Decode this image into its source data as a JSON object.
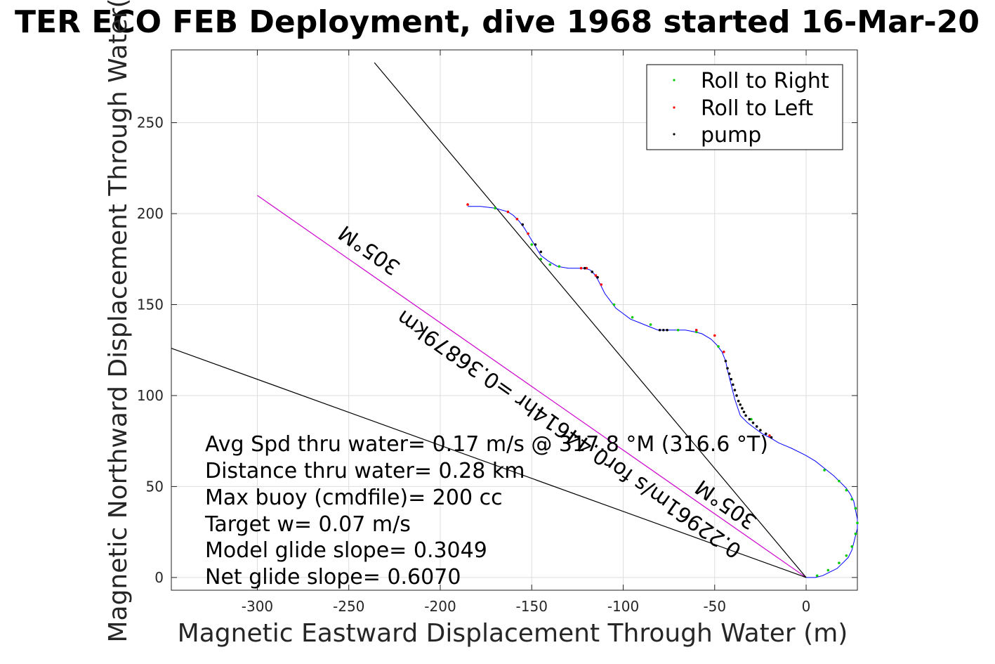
{
  "figure": {
    "title": "TER ECO FEB Deployment, dive 1968 started 16-Mar-20",
    "xlabel": "Magnetic Eastward Displacement Through Water (m)",
    "ylabel": "Magnetic Northward Displacement Through Water("
  },
  "legend": {
    "placement": "top-right",
    "items": [
      {
        "label": "Roll to Right",
        "color": "#00cc00"
      },
      {
        "label": "Roll to Left",
        "color": "#ff0000"
      },
      {
        "label": "pump",
        "color": "#000000"
      }
    ]
  },
  "stats": [
    "Avg Spd thru water=  0.17 m/s @ 317.8 °M (316.6 °T)",
    "Distance thru water=  0.28 km",
    "Max buoy (cmdfile)= 200 cc",
    "Target w= 0.07 m/s",
    "Model glide slope= 0.3049",
    "Net glide slope= 0.6070"
  ],
  "annotations": {
    "heading_far": "305°M",
    "heading_near": "305°M",
    "vector_label": "0.22961m/s for0.44614hr =0.36879km"
  },
  "colors": {
    "track": "#0000ff",
    "heading_line": "#cc00cc",
    "guide_lines": "#000000",
    "grid": "#dddddd"
  },
  "chart_data": {
    "type": "scatter",
    "title": "TER ECO FEB Deployment, dive 1968 started 16-Mar-20",
    "xlabel": "Magnetic Eastward Displacement Through Water (m)",
    "ylabel": "Magnetic Northward Displacement Through Water(",
    "xlim": [
      -347,
      28
    ],
    "ylim": [
      -7,
      290
    ],
    "xticks": [
      -300,
      -250,
      -200,
      -150,
      -100,
      -50,
      0
    ],
    "yticks": [
      0,
      50,
      100,
      150,
      200,
      250
    ],
    "grid": true,
    "track": {
      "x": [
        -185,
        -178,
        -170,
        -163,
        -160,
        -157,
        -154,
        -151,
        -148,
        -145,
        -141,
        -136,
        -130,
        -125,
        -121,
        -118,
        -116,
        -114,
        -112,
        -110,
        -107,
        -104,
        -100,
        -96,
        -91,
        -86,
        -81,
        -76,
        -71,
        -66,
        -61,
        -57,
        -52,
        -49,
        -46,
        -44,
        -43,
        -42,
        -41,
        -40,
        -39,
        -38,
        -37,
        -36,
        -34,
        -32,
        -28,
        -24,
        -20,
        -15,
        -8,
        0,
        5,
        10,
        15,
        19,
        22,
        24,
        26,
        27,
        28,
        28,
        27,
        26,
        25,
        23,
        20,
        17,
        13,
        9,
        5,
        2,
        0,
        2,
        0
      ],
      "y": [
        204,
        204,
        203,
        201,
        199,
        196,
        192,
        187,
        182,
        177,
        174,
        171,
        170,
        170,
        170,
        169,
        167,
        164,
        160,
        156,
        152,
        148,
        145,
        142,
        140,
        138,
        136,
        136,
        136,
        136,
        135,
        134,
        131,
        128,
        124,
        119,
        114,
        110,
        106,
        102,
        98,
        95,
        92,
        89,
        87,
        85,
        82,
        79,
        77,
        74,
        71,
        67,
        64,
        60,
        56,
        52,
        49,
        46,
        42,
        37,
        32,
        27,
        23,
        19,
        15,
        11,
        8,
        5,
        3,
        1,
        0,
        0,
        0,
        0,
        0
      ]
    },
    "series": [
      {
        "name": "Roll to Right",
        "x": [
          -170,
          -150,
          -145,
          -140,
          -135,
          -105,
          -95,
          -85,
          -70,
          -60,
          -48,
          -30,
          10,
          18,
          22,
          25,
          27,
          28,
          27,
          25,
          22,
          18,
          12,
          6
        ],
        "y": [
          203,
          183,
          175,
          172,
          171,
          150,
          143,
          139,
          136,
          135,
          127,
          87,
          59,
          53,
          48,
          43,
          38,
          30,
          24,
          17,
          12,
          8,
          4,
          1
        ]
      },
      {
        "name": "Roll to Left",
        "x": [
          -185,
          -163,
          -158,
          -152,
          -123,
          -120,
          -115,
          -112,
          -60,
          -50,
          -45,
          -20
        ],
        "y": [
          205,
          201,
          197,
          189,
          170,
          170,
          166,
          161,
          136,
          133,
          124,
          78
        ]
      },
      {
        "name": "pump",
        "x": [
          -155,
          -148,
          -145,
          -121,
          -117,
          -114,
          -80,
          -78,
          -76,
          -44,
          -43,
          -42,
          -41,
          -40,
          -39,
          -38,
          -37,
          -36,
          -35,
          -34,
          -33,
          -31,
          -29,
          -27,
          -25,
          -22,
          -19
        ],
        "y": [
          194,
          183,
          179,
          170,
          168,
          165,
          136,
          136,
          136,
          119,
          115,
          112,
          109,
          106,
          103,
          100,
          97,
          95,
          93,
          91,
          89,
          87,
          85,
          83,
          81,
          79,
          77
        ]
      }
    ],
    "reference_lines": [
      {
        "kind": "heading-305",
        "x": [
          0,
          -300
        ],
        "y": [
          0,
          210
        ]
      },
      {
        "kind": "guide-steep",
        "x": [
          0,
          -236
        ],
        "y": [
          0,
          283
        ]
      },
      {
        "kind": "guide-shallow",
        "x": [
          0,
          -347
        ],
        "y": [
          0,
          126
        ]
      }
    ]
  }
}
